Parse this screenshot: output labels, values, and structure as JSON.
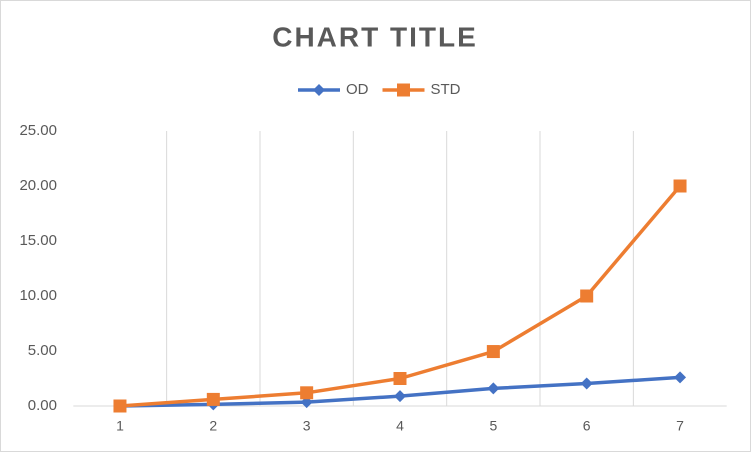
{
  "chart_data": {
    "type": "line",
    "title": "CHART TITLE",
    "categories": [
      "1",
      "2",
      "3",
      "4",
      "5",
      "6",
      "7"
    ],
    "series": [
      {
        "name": "OD",
        "color": "#4472c4",
        "marker": "diamond",
        "values": [
          0,
          0.15,
          0.35,
          0.9,
          1.6,
          2.05,
          2.6
        ]
      },
      {
        "name": "STD",
        "color": "#ed7d31",
        "marker": "square",
        "values": [
          0,
          0.6,
          1.2,
          2.5,
          4.95,
          10.0,
          20.0
        ]
      }
    ],
    "ylim": [
      0,
      25
    ],
    "yticks": [
      {
        "value": 0,
        "label": "0.00"
      },
      {
        "value": 5,
        "label": "5.00"
      },
      {
        "value": 10,
        "label": "10.00"
      },
      {
        "value": 15,
        "label": "15.00"
      },
      {
        "value": 20,
        "label": "20.00"
      },
      {
        "value": 25,
        "label": "25.00"
      }
    ],
    "xgrid": true,
    "legend": "top"
  }
}
